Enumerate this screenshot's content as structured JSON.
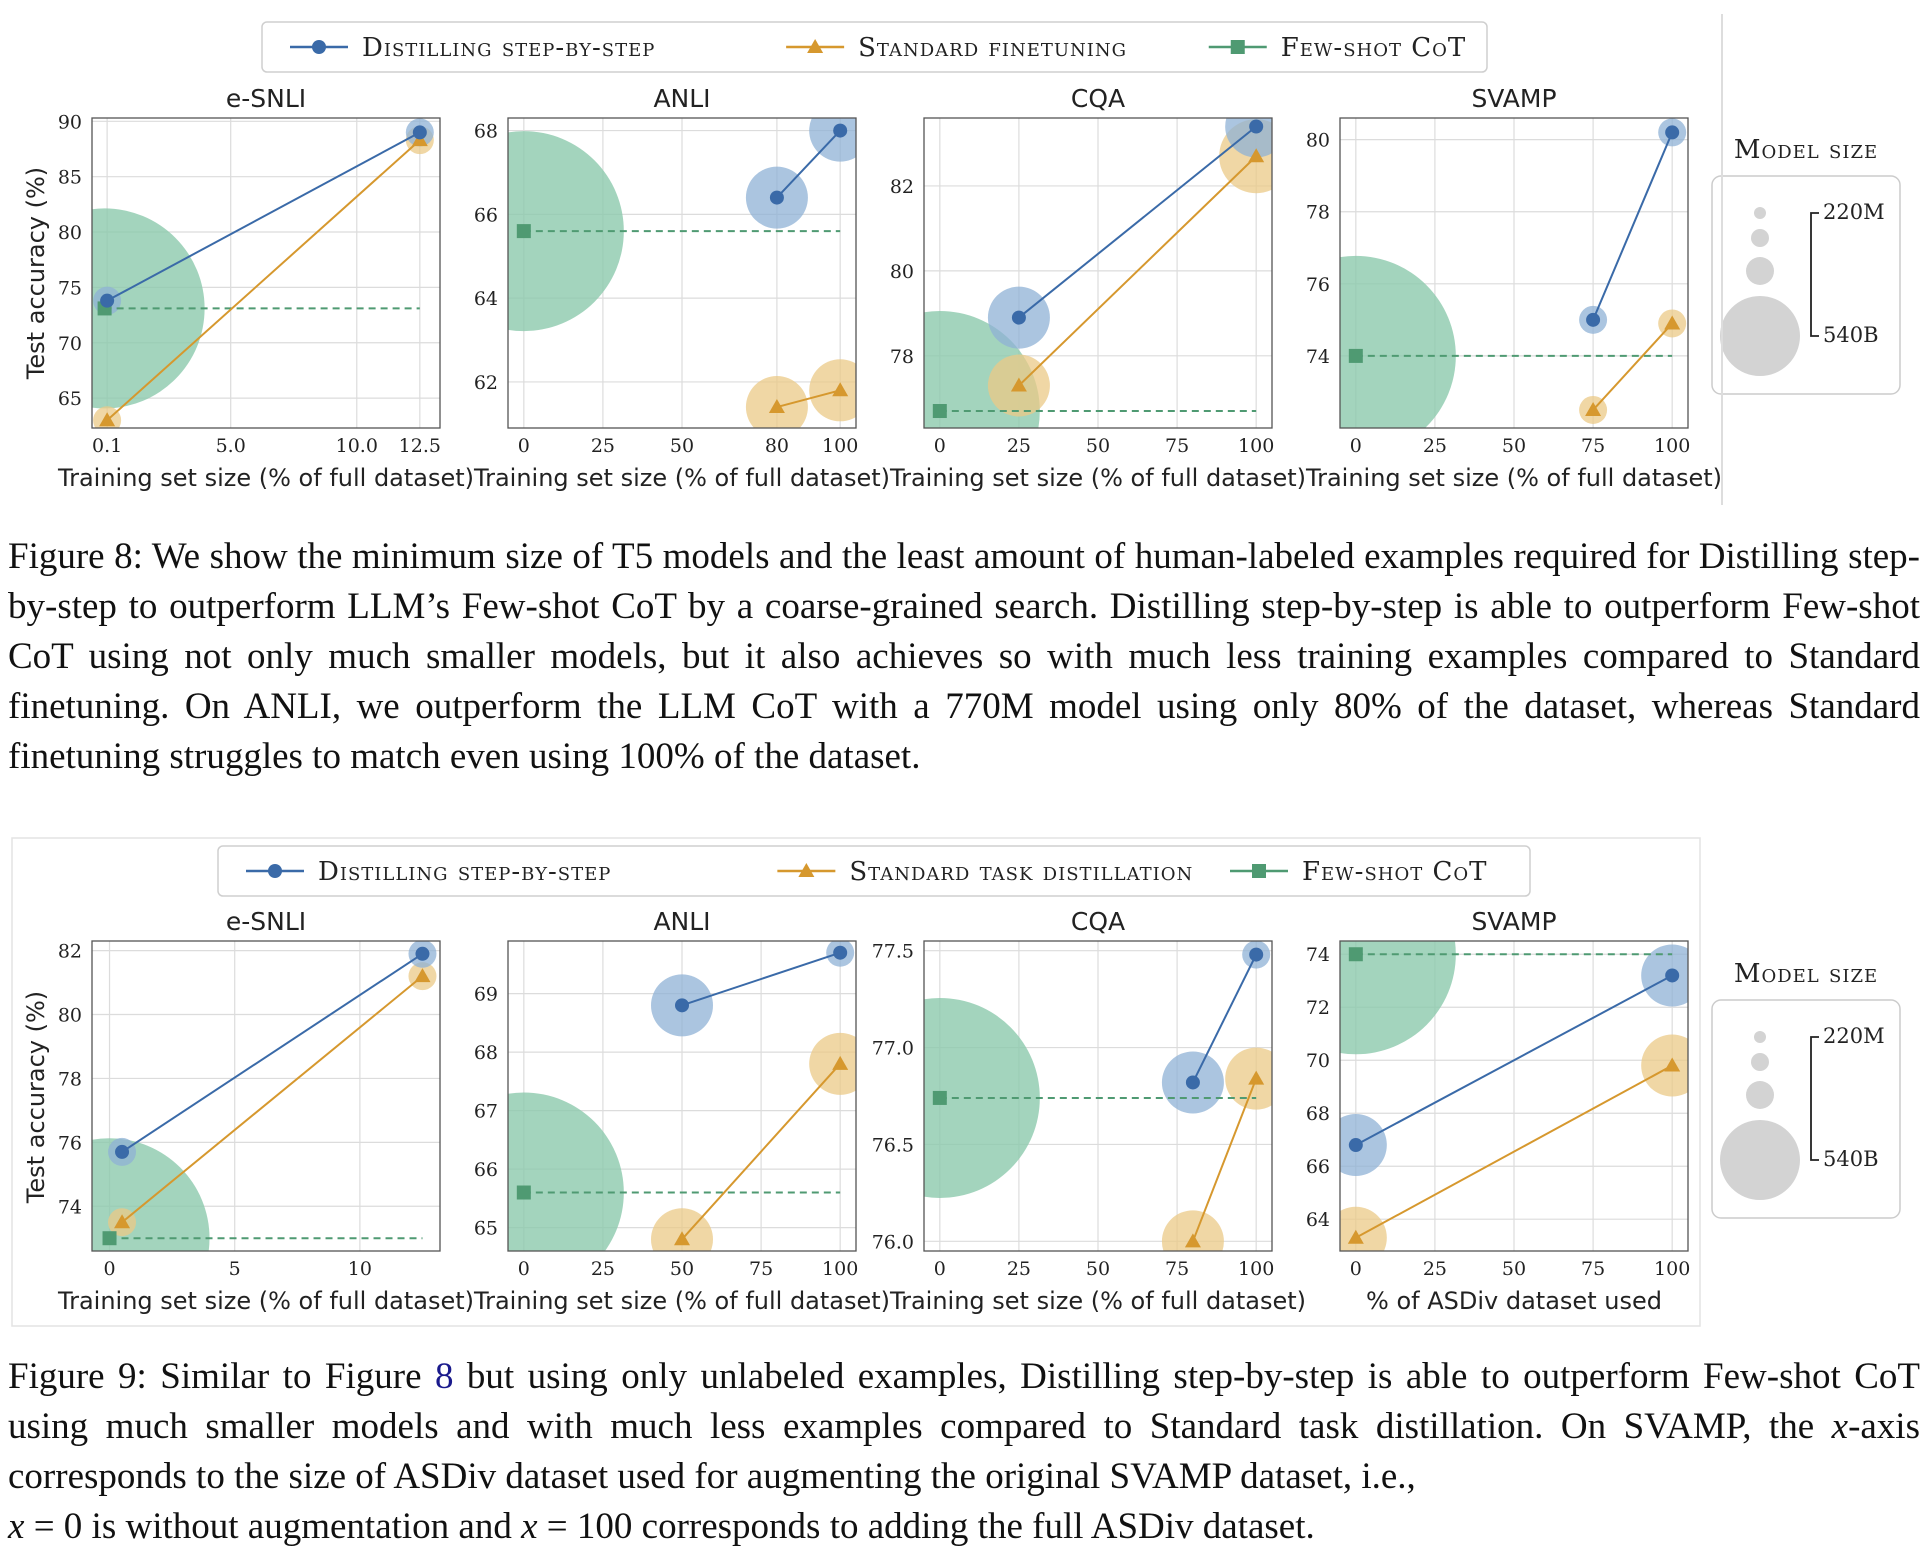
{
  "colors": {
    "distill": "#3a6aa8",
    "standard": "#d6982e",
    "fewshot": "#4f9a72",
    "distill_bubble": "#8fb2d6",
    "standard_bubble": "#ebc987",
    "fewshot_bubble": "#8cc9ad",
    "grid": "#dcdcdc"
  },
  "figures": [
    {
      "legend": {
        "distill": "Distilling step-by-step",
        "standard": "Standard finetuning",
        "fewshot": "Few-shot CoT"
      },
      "model_size": {
        "title": "Model size",
        "small": "220M",
        "large": "540B"
      },
      "ylabel": "Test accuracy (%)",
      "caption": "Figure 8: We show the minimum size of T5 models and the least amount of human-labeled examples required for Distilling step-by-step to outperform LLM’s Few-shot CoT by a coarse-grained search. Distilling step-by-step is able to outperform Few-shot CoT using not only much smaller models, but it also achieves so with much less training examples compared to Standard finetuning. On ANLI, we outperform the LLM CoT with a 770M model using only 80% of the dataset, whereas Standard finetuning struggles to match even using 100% of the dataset.",
      "chart_data": [
        {
          "type": "scatter",
          "title": "e-SNLI",
          "xlabel": "Training set size (% of full dataset)",
          "xlim": [
            -0.5,
            13.3
          ],
          "ylim": [
            62.3,
            90.3
          ],
          "xticks": [
            0.1,
            5.0,
            10.0,
            12.5
          ],
          "xtick_labels": [
            "0.1",
            "5.0",
            "10.0",
            "12.5"
          ],
          "yticks": [
            65,
            70,
            75,
            80,
            85,
            90
          ],
          "ytick_labels": [
            "65",
            "70",
            "75",
            "80",
            "85",
            "90"
          ],
          "series": [
            {
              "name": "Distilling step-by-step",
              "x": [
                0.1,
                12.5
              ],
              "y": [
                73.8,
                89.0
              ],
              "sizes": [
                "220M",
                "220M"
              ]
            },
            {
              "name": "Standard finetuning",
              "x": [
                0.1,
                12.5
              ],
              "y": [
                63.0,
                88.3
              ],
              "sizes": [
                "220M",
                "220M"
              ]
            },
            {
              "name": "Few-shot CoT",
              "x": [
                0.0,
                12.5
              ],
              "y": [
                73.1,
                73.1
              ],
              "sizes": [
                "540B"
              ]
            }
          ]
        },
        {
          "type": "scatter",
          "title": "ANLI",
          "xlabel": "Training set size (% of full dataset)",
          "xlim": [
            -5,
            105
          ],
          "ylim": [
            60.9,
            68.3
          ],
          "xticks": [
            0,
            25,
            50,
            80,
            100
          ],
          "xtick_labels": [
            "0",
            "25",
            "50",
            "80",
            "100"
          ],
          "yticks": [
            62,
            64,
            66,
            68
          ],
          "ytick_labels": [
            "62",
            "64",
            "66",
            "68"
          ],
          "series": [
            {
              "name": "Distilling step-by-step",
              "x": [
                80,
                100
              ],
              "y": [
                66.4,
                68.0
              ],
              "sizes": [
                "770M",
                "770M"
              ]
            },
            {
              "name": "Standard finetuning",
              "x": [
                80,
                100
              ],
              "y": [
                61.4,
                61.8
              ],
              "sizes": [
                "770M",
                "770M"
              ]
            },
            {
              "name": "Few-shot CoT",
              "x": [
                0,
                100
              ],
              "y": [
                65.6,
                65.6
              ],
              "sizes": [
                "540B"
              ]
            }
          ]
        },
        {
          "type": "scatter",
          "title": "CQA",
          "xlabel": "Training set size (% of full dataset)",
          "xlim": [
            -5,
            105
          ],
          "ylim": [
            76.3,
            83.6
          ],
          "xticks": [
            0,
            25,
            50,
            75,
            100
          ],
          "xtick_labels": [
            "0",
            "25",
            "50",
            "75",
            "100"
          ],
          "yticks": [
            78,
            80,
            82
          ],
          "ytick_labels": [
            "78",
            "80",
            "82"
          ],
          "series": [
            {
              "name": "Distilling step-by-step",
              "x": [
                25,
                100
              ],
              "y": [
                78.9,
                83.4
              ],
              "sizes": [
                "770M",
                "770M"
              ]
            },
            {
              "name": "Standard finetuning",
              "x": [
                25,
                100
              ],
              "y": [
                77.3,
                82.7
              ],
              "sizes": [
                "770M",
                "11B"
              ]
            },
            {
              "name": "Few-shot CoT",
              "x": [
                0,
                100
              ],
              "y": [
                76.7,
                76.7
              ],
              "sizes": [
                "540B"
              ]
            }
          ]
        },
        {
          "type": "scatter",
          "title": "SVAMP",
          "xlabel": "Training set size (% of full dataset)",
          "xlim": [
            -5,
            105
          ],
          "ylim": [
            72.0,
            80.6
          ],
          "xticks": [
            0,
            25,
            50,
            75,
            100
          ],
          "xtick_labels": [
            "0",
            "25",
            "50",
            "75",
            "100"
          ],
          "yticks": [
            74,
            76,
            78,
            80
          ],
          "ytick_labels": [
            "74",
            "76",
            "78",
            "80"
          ],
          "series": [
            {
              "name": "Distilling step-by-step",
              "x": [
                75,
                100
              ],
              "y": [
                75.0,
                80.2
              ],
              "sizes": [
                "220M",
                "220M"
              ]
            },
            {
              "name": "Standard finetuning",
              "x": [
                75,
                100
              ],
              "y": [
                72.5,
                74.9
              ],
              "sizes": [
                "220M",
                "220M"
              ]
            },
            {
              "name": "Few-shot CoT",
              "x": [
                0,
                100
              ],
              "y": [
                74.0,
                74.0
              ],
              "sizes": [
                "540B"
              ]
            }
          ]
        }
      ]
    },
    {
      "legend": {
        "distill": "Distilling step-by-step",
        "standard": "Standard task distillation",
        "fewshot": "Few-shot CoT"
      },
      "model_size": {
        "title": "Model size",
        "small": "220M",
        "large": "540B"
      },
      "ylabel": "Test accuracy (%)",
      "caption_parts": {
        "a": "Figure 9: Similar to Figure ",
        "ref": "8",
        "b": " but using only unlabeled examples, Distilling step-by-step is able to outperform Few-shot CoT using much smaller models and with much less examples compared to Standard task distillation. On SVAMP, the ",
        "x1": "x",
        "c": "-axis corresponds to the size of ASDiv dataset used for augmenting the original SVAMP dataset, i.e., ",
        "x2": "x",
        "d": " = 0 is without augmentation and ",
        "x3": "x",
        "e": " = 100 corresponds to adding the full ASDiv dataset."
      },
      "chart_data": [
        {
          "type": "scatter",
          "title": "e-SNLI",
          "xlabel": "Training set size (% of full dataset)",
          "xlim": [
            -0.7,
            13.2
          ],
          "ylim": [
            72.6,
            82.3
          ],
          "xticks": [
            0,
            5,
            10
          ],
          "xtick_labels": [
            "0",
            "5",
            "10"
          ],
          "yticks": [
            74,
            76,
            78,
            80,
            82
          ],
          "ytick_labels": [
            "74",
            "76",
            "78",
            "80",
            "82"
          ],
          "series": [
            {
              "name": "Distilling step-by-step",
              "x": [
                0.5,
                12.5
              ],
              "y": [
                75.7,
                81.9
              ],
              "sizes": [
                "220M",
                "220M"
              ]
            },
            {
              "name": "Standard task distillation",
              "x": [
                0.5,
                12.5
              ],
              "y": [
                73.5,
                81.2
              ],
              "sizes": [
                "220M",
                "220M"
              ]
            },
            {
              "name": "Few-shot CoT",
              "x": [
                0,
                12.5
              ],
              "y": [
                73.0,
                73.0
              ],
              "sizes": [
                "540B"
              ]
            }
          ]
        },
        {
          "type": "scatter",
          "title": "ANLI",
          "xlabel": "Training set size (% of full dataset)",
          "xlim": [
            -5,
            105
          ],
          "ylim": [
            64.6,
            69.9
          ],
          "xticks": [
            0,
            25,
            50,
            75,
            100
          ],
          "xtick_labels": [
            "0",
            "25",
            "50",
            "75",
            "100"
          ],
          "yticks": [
            65,
            66,
            67,
            68,
            69
          ],
          "ytick_labels": [
            "65",
            "66",
            "67",
            "68",
            "69"
          ],
          "series": [
            {
              "name": "Distilling step-by-step",
              "x": [
                50,
                100
              ],
              "y": [
                68.8,
                69.7
              ],
              "sizes": [
                "770M",
                "220M"
              ]
            },
            {
              "name": "Standard task distillation",
              "x": [
                50,
                100
              ],
              "y": [
                64.8,
                67.8
              ],
              "sizes": [
                "770M",
                "770M"
              ]
            },
            {
              "name": "Few-shot CoT",
              "x": [
                0,
                100
              ],
              "y": [
                65.6,
                65.6
              ],
              "sizes": [
                "540B"
              ]
            }
          ]
        },
        {
          "type": "scatter",
          "title": "CQA",
          "xlabel": "Training set size (% of full dataset)",
          "xlim": [
            -5,
            105
          ],
          "ylim": [
            75.95,
            77.55
          ],
          "xticks": [
            0,
            25,
            50,
            75,
            100
          ],
          "xtick_labels": [
            "0",
            "25",
            "50",
            "75",
            "100"
          ],
          "yticks": [
            76.0,
            76.5,
            77.0,
            77.5
          ],
          "ytick_labels": [
            "76.0",
            "76.5",
            "77.0",
            "77.5"
          ],
          "series": [
            {
              "name": "Distilling step-by-step",
              "x": [
                80,
                100
              ],
              "y": [
                76.82,
                77.48
              ],
              "sizes": [
                "770M",
                "220M"
              ]
            },
            {
              "name": "Standard task distillation",
              "x": [
                80,
                100
              ],
              "y": [
                76.0,
                76.84
              ],
              "sizes": [
                "770M",
                "770M"
              ]
            },
            {
              "name": "Few-shot CoT",
              "x": [
                0,
                100
              ],
              "y": [
                76.74,
                76.74
              ],
              "sizes": [
                "540B"
              ]
            }
          ]
        },
        {
          "type": "scatter",
          "title": "SVAMP",
          "xlabel": "% of ASDiv dataset used",
          "xlim": [
            -5,
            105
          ],
          "ylim": [
            62.8,
            74.5
          ],
          "xticks": [
            0,
            25,
            50,
            75,
            100
          ],
          "xtick_labels": [
            "0",
            "25",
            "50",
            "75",
            "100"
          ],
          "yticks": [
            64,
            66,
            68,
            70,
            72,
            74
          ],
          "ytick_labels": [
            "64",
            "66",
            "68",
            "70",
            "72",
            "74"
          ],
          "series": [
            {
              "name": "Distilling step-by-step",
              "x": [
                0,
                100
              ],
              "y": [
                66.8,
                73.2
              ],
              "sizes": [
                "770M",
                "770M"
              ]
            },
            {
              "name": "Standard task distillation",
              "x": [
                0,
                100
              ],
              "y": [
                63.3,
                69.8
              ],
              "sizes": [
                "770M",
                "770M"
              ]
            },
            {
              "name": "Few-shot CoT",
              "x": [
                0,
                100
              ],
              "y": [
                74.0,
                74.0
              ],
              "sizes": [
                "540B"
              ]
            }
          ]
        }
      ]
    }
  ]
}
